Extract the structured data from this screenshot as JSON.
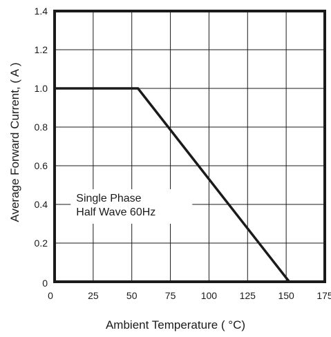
{
  "chart_data": {
    "type": "line",
    "xlabel": "Ambient Temperature (  °C)",
    "ylabel": "Average Forward Current, ( A )",
    "xlim": [
      0,
      175
    ],
    "ylim": [
      0,
      1.4
    ],
    "x_ticks": [
      0,
      25,
      50,
      75,
      100,
      125,
      150,
      175
    ],
    "x_tick_labels": [
      "0",
      "25",
      "50",
      "75",
      "100",
      "125",
      "150",
      "175"
    ],
    "y_ticks": [
      0,
      0.2,
      0.4,
      0.6,
      0.8,
      1.0,
      1.2,
      1.4
    ],
    "y_tick_labels": [
      "0",
      "0.2",
      "0.4",
      "0.6",
      "0.8",
      "1.0",
      "1.2",
      "1.4"
    ],
    "grid": true,
    "series": [
      {
        "x": [
          0,
          54,
          152
        ],
        "y": [
          1.0,
          1.0,
          0
        ]
      }
    ],
    "annotation": {
      "lines": [
        "Single Phase",
        "Half Wave 60Hz"
      ],
      "anchor": {
        "x": 14,
        "y": 0.4
      }
    },
    "colors": {
      "line": "#1a1a1a",
      "grid": "#1a1a1a",
      "frame": "#1a1a1a",
      "background": "#ffffff"
    }
  }
}
